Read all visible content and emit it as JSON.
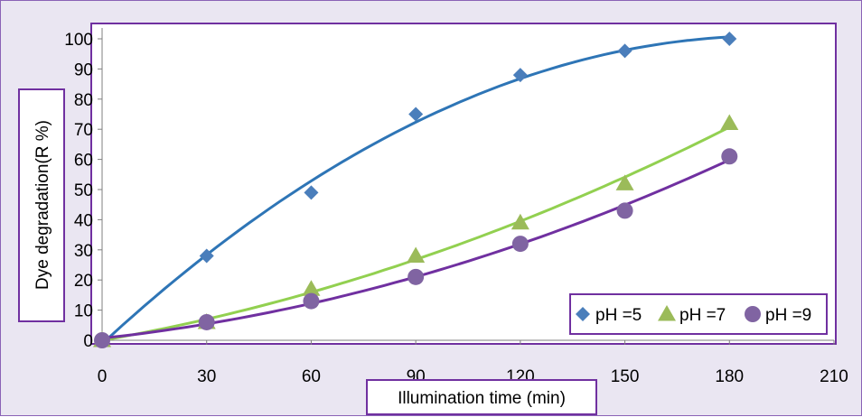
{
  "chart_data": {
    "type": "scatter",
    "title": "",
    "xlabel": "Illumination time (min)",
    "ylabel": "Dye degradation(R %)",
    "xlim": [
      0,
      210
    ],
    "ylim": [
      0,
      100
    ],
    "x_ticks": [
      0,
      30,
      60,
      90,
      120,
      150,
      180,
      210
    ],
    "y_ticks": [
      0,
      10,
      20,
      30,
      40,
      50,
      60,
      70,
      80,
      90,
      100
    ],
    "grid": false,
    "legend_position": "bottom-right",
    "trendline": "polynomial",
    "series": [
      {
        "name": "pH =5",
        "marker": "diamond",
        "color": "#4a7ebb",
        "line_color": "#2e75b6",
        "x": [
          0,
          30,
          60,
          90,
          120,
          150,
          180
        ],
        "values": [
          0,
          28,
          49,
          75,
          88,
          96,
          100
        ]
      },
      {
        "name": "pH =7",
        "marker": "triangle",
        "color": "#9bbb59",
        "line_color": "#92d050",
        "x": [
          0,
          30,
          60,
          90,
          120,
          150,
          180
        ],
        "values": [
          0,
          6,
          17,
          28,
          39,
          52,
          72
        ]
      },
      {
        "name": "pH =9",
        "marker": "circle",
        "color": "#8064a2",
        "line_color": "#7030a0",
        "x": [
          0,
          30,
          60,
          90,
          120,
          150,
          180
        ],
        "values": [
          0,
          6,
          13,
          21,
          32,
          43,
          61
        ]
      }
    ]
  }
}
